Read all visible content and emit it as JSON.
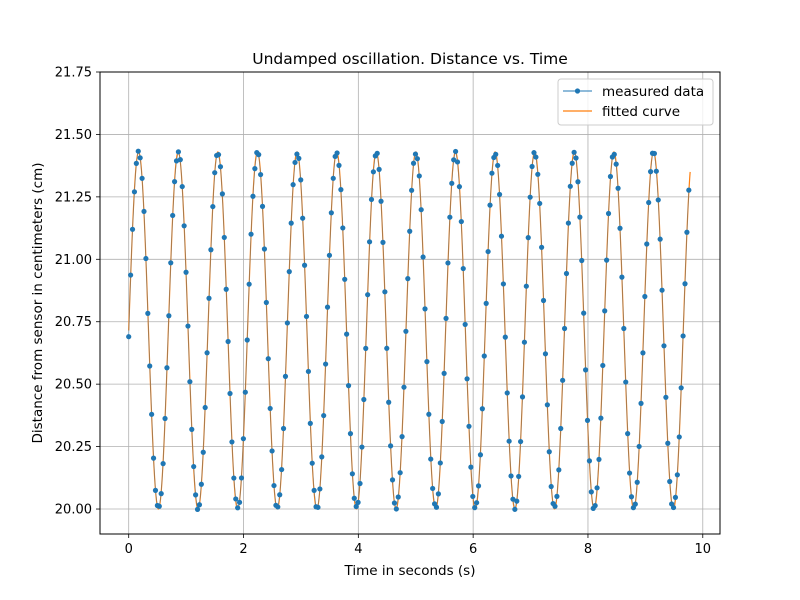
{
  "chart_data": {
    "type": "line",
    "title": "Undamped oscillation. Distance vs. Time",
    "xlabel": "Time in seconds (s)",
    "ylabel": "Distance from sensor in centimeters (cm)",
    "xlim": [
      -0.5,
      10.3
    ],
    "ylim": [
      19.9,
      21.75
    ],
    "xticks": [
      0,
      2,
      4,
      6,
      8,
      10
    ],
    "yticks": [
      20.0,
      20.25,
      20.5,
      20.75,
      21.0,
      21.25,
      21.5,
      21.75
    ],
    "xtick_labels": [
      "0",
      "2",
      "4",
      "6",
      "8",
      "10"
    ],
    "ytick_labels": [
      "20.00",
      "20.25",
      "20.50",
      "20.75",
      "21.00",
      "21.25",
      "21.50",
      "21.75"
    ],
    "grid": true,
    "legend_position": "top-right",
    "series": [
      {
        "name": "measured data",
        "style": "points",
        "color": "#1f77b4",
        "model": {
          "offset": 20.715,
          "amplitude": 0.715,
          "period": 0.69,
          "phase_time": 0.0,
          "x_start": 0.0,
          "x_end": 9.78,
          "x_step": 0.0333,
          "first_value": 20.69
        }
      },
      {
        "name": "fitted curve",
        "style": "line",
        "color": "#ff7f0e",
        "model": {
          "offset": 20.715,
          "amplitude": 0.715,
          "period": 0.69,
          "phase_time": 0.0,
          "x_start": 0.0,
          "x_end": 9.78
        }
      }
    ]
  }
}
